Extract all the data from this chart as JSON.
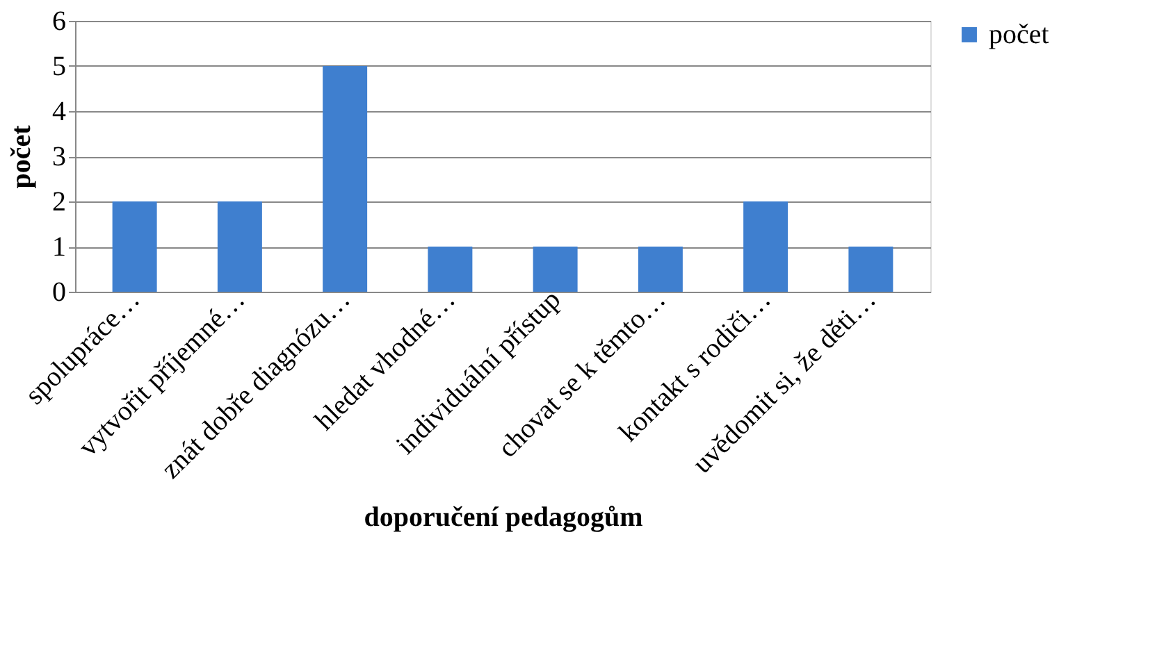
{
  "chart_data": {
    "type": "bar",
    "categories": [
      "spolupráce…",
      "vytvořit příjemné…",
      "znát dobře diagnózu…",
      "hledat vhodné…",
      "individuální přístup",
      "chovat se k těmto…",
      "kontakt s rodiči…",
      "uvědomit si, že děti…"
    ],
    "series": [
      {
        "name": "počet",
        "color": "#3f7fcf",
        "values": [
          2,
          2,
          5,
          1,
          1,
          1,
          2,
          1
        ]
      }
    ],
    "xlabel": "doporučení pedagogům",
    "ylabel": "počet",
    "ylim": [
      0,
      6
    ],
    "yticks": [
      0,
      1,
      2,
      3,
      4,
      5,
      6
    ],
    "grid": "y",
    "legend": "right"
  }
}
